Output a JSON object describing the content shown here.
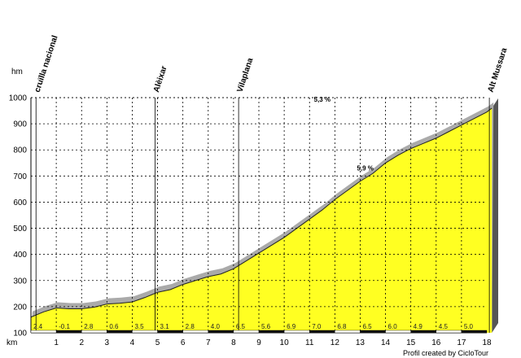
{
  "chart_data": {
    "type": "area",
    "y_unit": "hm",
    "x_unit": "km",
    "xlim": [
      0,
      18
    ],
    "ylim": [
      100,
      1000
    ],
    "x_ticks": [
      "1",
      "2",
      "3",
      "4",
      "5",
      "6",
      "7",
      "8",
      "9",
      "10",
      "11",
      "12",
      "13",
      "14",
      "15",
      "16",
      "17",
      "18"
    ],
    "y_ticks": [
      "100",
      "200",
      "300",
      "400",
      "500",
      "600",
      "700",
      "800",
      "900",
      "1000"
    ],
    "grid": true,
    "fill_color": "#ffff22",
    "shadow_color": "#aaaaaa",
    "profile": {
      "x": [
        0,
        0.5,
        1,
        1.5,
        2,
        2.5,
        3,
        3.5,
        4,
        4.5,
        5,
        5.5,
        6,
        6.5,
        7,
        7.5,
        8,
        8.5,
        9,
        9.5,
        10,
        10.5,
        11,
        11.5,
        12,
        12.5,
        13,
        13.5,
        14,
        14.5,
        15,
        15.5,
        16,
        16.5,
        17,
        17.5,
        18,
        18.2
      ],
      "y": [
        160,
        180,
        195,
        192,
        192,
        198,
        210,
        213,
        218,
        235,
        255,
        265,
        285,
        300,
        315,
        325,
        345,
        375,
        405,
        435,
        465,
        500,
        535,
        570,
        610,
        645,
        680,
        710,
        750,
        780,
        805,
        825,
        845,
        870,
        895,
        920,
        945,
        960
      ]
    },
    "km_gradients": [
      "2.4",
      "-0.1",
      "2.8",
      "0.6",
      "3.5",
      "3.1",
      "2.8",
      "4.0",
      "6.5",
      "5.6",
      "6.9",
      "7.0",
      "6.8",
      "6.5",
      "6.0",
      "4.9",
      "4.5",
      "5.0"
    ],
    "places": [
      {
        "name": "cruïlla nacional",
        "km": 0.2
      },
      {
        "name": "Alèixar",
        "km": 4.9
      },
      {
        "name": "Vilaplana",
        "km": 8.2
      },
      {
        "name": "Alt Mussara",
        "km": 18.1
      }
    ],
    "annotations": [
      {
        "text": "5,3 %",
        "km": 11.5,
        "alt": 985
      },
      {
        "text": "5,9 %",
        "km": 13.2,
        "alt": 722
      }
    ],
    "credit": "Profil created by CicloTour"
  }
}
